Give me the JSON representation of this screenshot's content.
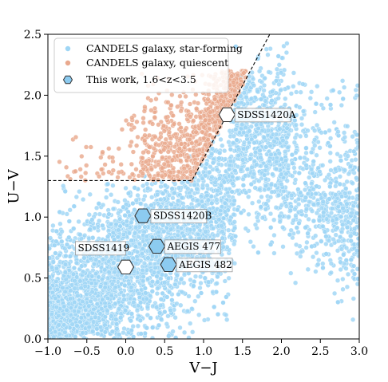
{
  "chart_data": {
    "type": "scatter",
    "xlabel": "V−J",
    "ylabel": "U−V",
    "xlim": [
      -1.0,
      3.0
    ],
    "ylim": [
      0.0,
      2.5
    ],
    "grid": false,
    "legend_position": "top-left",
    "x_ticks": [
      -1.0,
      -0.5,
      0.0,
      0.5,
      1.0,
      1.5,
      2.0,
      2.5,
      3.0
    ],
    "x_tick_labels": [
      "−1.0",
      "−0.5",
      "0.0",
      "0.5",
      "1.0",
      "1.5",
      "2.0",
      "2.5",
      "3.0"
    ],
    "y_ticks": [
      0.0,
      0.5,
      1.0,
      1.5,
      2.0,
      2.5
    ],
    "y_tick_labels": [
      "0.0",
      "0.5",
      "1.0",
      "1.5",
      "2.0",
      "2.5"
    ],
    "quiescent_boundary": {
      "style": "dashed",
      "points": [
        [
          -1.0,
          1.3
        ],
        [
          0.85,
          1.3
        ],
        [
          1.85,
          2.5
        ]
      ]
    },
    "series": [
      {
        "name": "CANDELS galaxy, star-forming",
        "color": "#9fd6f5",
        "marker": "circle",
        "representative_points": [
          [
            -0.8,
            0.2
          ],
          [
            -0.5,
            0.5
          ],
          [
            0.0,
            0.8
          ],
          [
            0.5,
            1.0
          ],
          [
            1.0,
            1.2
          ],
          [
            1.4,
            1.5
          ],
          [
            2.0,
            1.0
          ],
          [
            2.5,
            0.6
          ],
          [
            2.9,
            0.4
          ]
        ]
      },
      {
        "name": "CANDELS galaxy, quiescent",
        "color": "#e9a98e",
        "marker": "circle",
        "representative_points": [
          [
            -0.6,
            1.35
          ],
          [
            -0.2,
            1.6
          ],
          [
            0.3,
            1.5
          ],
          [
            0.6,
            1.8
          ],
          [
            0.9,
            1.6
          ],
          [
            1.2,
            2.0
          ],
          [
            1.45,
            2.15
          ]
        ]
      },
      {
        "name": "This work, 1.6<z<3.5",
        "color": "#8ccbf0",
        "marker": "hexagon",
        "points": [
          {
            "label": "SDSS1420A",
            "x": 1.3,
            "y": 1.84,
            "fill": "#ffffff"
          },
          {
            "label": "SDSS1420B",
            "x": 0.22,
            "y": 1.01,
            "fill": "#8ccbf0"
          },
          {
            "label": "AEGIS 477",
            "x": 0.4,
            "y": 0.76,
            "fill": "#8ccbf0"
          },
          {
            "label": "AEGIS 482",
            "x": 0.55,
            "y": 0.61,
            "fill": "#8ccbf0"
          },
          {
            "label": "SDSS1419",
            "x": 0.0,
            "y": 0.59,
            "fill": "#ffffff"
          }
        ]
      }
    ]
  }
}
